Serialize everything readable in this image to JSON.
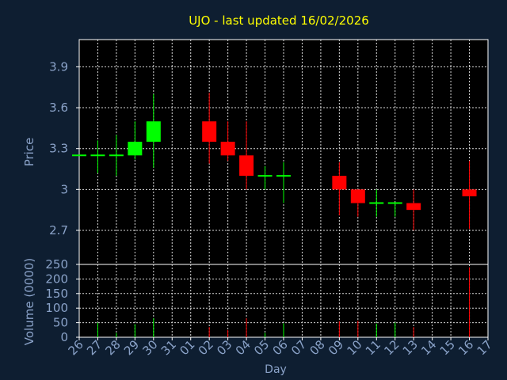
{
  "chart_data": {
    "type": "candlestick",
    "title": "UJO - last updated 16/02/2026",
    "xlabel": "Day",
    "ylabel": "Price",
    "volume_label": "Volume (0000)",
    "grid": true,
    "price_ylim": [
      2.45,
      4.1
    ],
    "price_ticks": [
      "3.9",
      "3.6",
      "3.3",
      "3",
      "2.7"
    ],
    "price_tick_values": [
      3.9,
      3.6,
      3.3,
      3.0,
      2.7
    ],
    "volume_ylim": [
      0,
      250
    ],
    "volume_ticks": [
      "250",
      "200",
      "150",
      "100",
      "50",
      "0"
    ],
    "volume_tick_values": [
      250,
      200,
      150,
      100,
      50,
      0
    ],
    "x_tick_labels": [
      "26",
      "27",
      "28",
      "29",
      "30",
      "31",
      "01",
      "02",
      "03",
      "04",
      "05",
      "06",
      "07",
      "08",
      "09",
      "10",
      "11",
      "12",
      "13",
      "14",
      "15",
      "16",
      "17"
    ],
    "colors": {
      "up": "#00ff00",
      "down": "#ff0000",
      "title": "#ffff00",
      "axis_text": "#8aa2c8",
      "background": "#0e1e31",
      "plot": "#000000",
      "grid": "#d8d8d8"
    },
    "candles": [
      {
        "day": "26",
        "open": 3.25,
        "high": 3.25,
        "low": 3.25,
        "close": 3.25,
        "volume": 0
      },
      {
        "day": "27",
        "open": 3.25,
        "high": 3.36,
        "low": 3.12,
        "close": 3.25,
        "volume": 50
      },
      {
        "day": "28",
        "open": 3.25,
        "high": 3.4,
        "low": 3.1,
        "close": 3.25,
        "volume": 15
      },
      {
        "day": "29",
        "open": 3.25,
        "high": 3.5,
        "low": 3.22,
        "close": 3.35,
        "volume": 45
      },
      {
        "day": "30",
        "open": 3.35,
        "high": 3.7,
        "low": 3.16,
        "close": 3.5,
        "volume": 65
      },
      {
        "day": "02",
        "open": 3.5,
        "high": 3.71,
        "low": 3.19,
        "close": 3.35,
        "volume": 35
      },
      {
        "day": "03",
        "open": 3.35,
        "high": 3.5,
        "low": 3.21,
        "close": 3.25,
        "volume": 25
      },
      {
        "day": "04",
        "open": 3.25,
        "high": 3.5,
        "low": 3.0,
        "close": 3.1,
        "volume": 65
      },
      {
        "day": "05",
        "open": 3.1,
        "high": 3.17,
        "low": 3.0,
        "close": 3.1,
        "volume": 15
      },
      {
        "day": "06",
        "open": 3.1,
        "high": 3.2,
        "low": 2.9,
        "close": 3.1,
        "volume": 48
      },
      {
        "day": "09",
        "open": 3.1,
        "high": 3.2,
        "low": 2.81,
        "close": 3.0,
        "volume": 55
      },
      {
        "day": "10",
        "open": 3.0,
        "high": 3.0,
        "low": 2.8,
        "close": 2.9,
        "volume": 57
      },
      {
        "day": "11",
        "open": 2.9,
        "high": 3.0,
        "low": 2.8,
        "close": 2.9,
        "volume": 47
      },
      {
        "day": "12",
        "open": 2.9,
        "high": 2.9,
        "low": 2.8,
        "close": 2.9,
        "volume": 50
      },
      {
        "day": "13",
        "open": 2.9,
        "high": 3.0,
        "low": 2.7,
        "close": 2.85,
        "volume": 35
      },
      {
        "day": "16",
        "open": 3.0,
        "high": 3.21,
        "low": 2.71,
        "close": 2.95,
        "volume": 240
      }
    ]
  }
}
